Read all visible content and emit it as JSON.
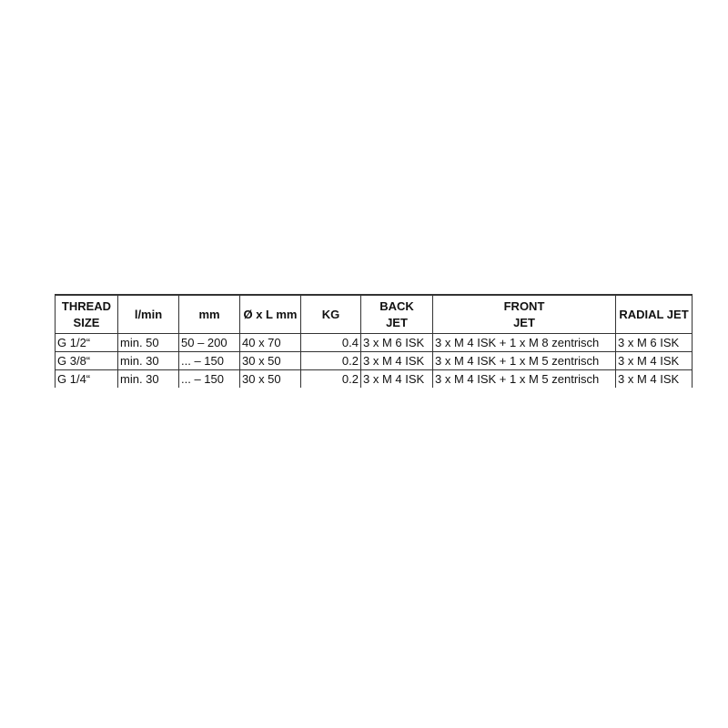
{
  "table": {
    "headers": [
      [
        "THREAD",
        "SIZE"
      ],
      [
        "l/min",
        ""
      ],
      [
        "mm",
        ""
      ],
      [
        "Ø x L mm",
        ""
      ],
      [
        "KG",
        ""
      ],
      [
        "BACK",
        "JET"
      ],
      [
        "FRONT",
        "JET"
      ],
      [
        "RADIAL JET",
        ""
      ]
    ],
    "rows": [
      [
        "G 1/2“",
        "min. 50",
        "50 – 200",
        "40 x 70",
        "0.4",
        "3 x M 6 ISK",
        "3 x M 4 ISK + 1 x M 8 zentrisch",
        "3 x M 6 ISK"
      ],
      [
        "G 3/8“",
        "min. 30",
        "... – 150",
        "30 x 50",
        "0.2",
        "3 x M 4 ISK",
        "3 x M 4 ISK + 1 x M 5 zentrisch",
        "3 x M 4 ISK"
      ],
      [
        "G 1/4“",
        "min. 30",
        "... – 150",
        "30 x 50",
        "0.2",
        "3 x M 4 ISK",
        "3 x M 4 ISK + 1 x M 5 zentrisch",
        "3 x M 4 ISK"
      ]
    ]
  }
}
